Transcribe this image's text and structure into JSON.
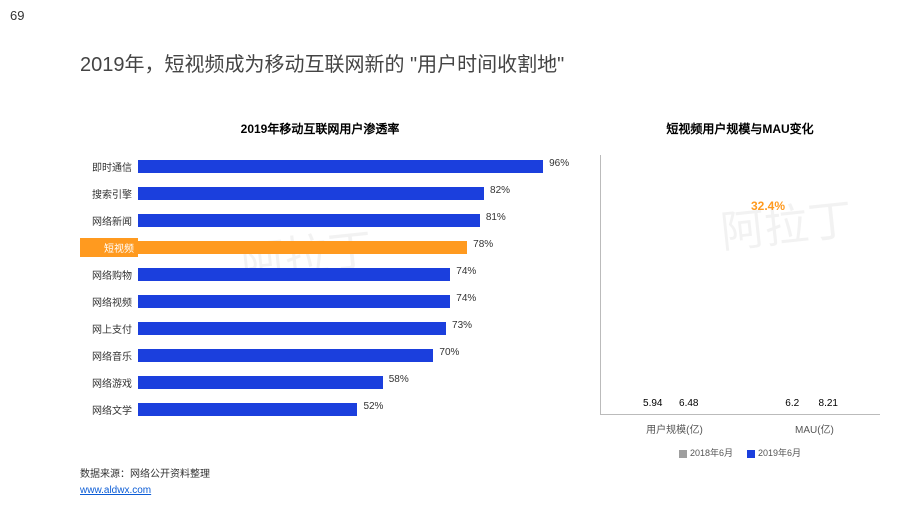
{
  "page_number": "69",
  "title": "2019年，短视频成为移动互联网新的 \"用户时间收割地\"",
  "watermark_text": "阿拉丁",
  "source_label": "数据来源：网络公开资料整理",
  "source_link_text": "www.aldwx.com",
  "source_link_color": "#0b5cd6",
  "left_chart": {
    "type": "bar-horizontal",
    "title": "2019年移动互联网用户渗透率",
    "max": 100,
    "default_color": "#1b3fdd",
    "highlight_color": "#ff9a1f",
    "label_fontsize": 10,
    "value_fontsize": 10,
    "items": [
      {
        "label": "即时通信",
        "value": 96,
        "highlight": false
      },
      {
        "label": "搜索引擎",
        "value": 82,
        "highlight": false
      },
      {
        "label": "网络新闻",
        "value": 81,
        "highlight": false
      },
      {
        "label": "短视频",
        "value": 78,
        "highlight": true
      },
      {
        "label": "网络购物",
        "value": 74,
        "highlight": false
      },
      {
        "label": "网络视频",
        "value": 74,
        "highlight": false
      },
      {
        "label": "网上支付",
        "value": 73,
        "highlight": false
      },
      {
        "label": "网络音乐",
        "value": 70,
        "highlight": false
      },
      {
        "label": "网络游戏",
        "value": 58,
        "highlight": false
      },
      {
        "label": "网络文学",
        "value": 52,
        "highlight": false
      }
    ]
  },
  "right_chart": {
    "type": "bar-grouped",
    "title": "短视频用户规模与MAU变化",
    "ylim": [
      0,
      9
    ],
    "series_colors": {
      "s2018": "#9e9e9e",
      "s2019": "#1b3fdd"
    },
    "legend": [
      {
        "swatch": "#9e9e9e",
        "label": "2018年6月"
      },
      {
        "swatch": "#1b3fdd",
        "label": "2019年6月"
      }
    ],
    "groups": [
      {
        "category": "用户规模(亿)",
        "bars": [
          {
            "series": "s2018",
            "value": 5.94
          },
          {
            "series": "s2019",
            "value": 6.48
          }
        ]
      },
      {
        "category": "MAU(亿)",
        "bars": [
          {
            "series": "s2018",
            "value": 6.2
          },
          {
            "series": "s2019",
            "value": 8.21
          }
        ]
      }
    ],
    "growth_label": {
      "text": "32.4%",
      "color": "#ff9a1f"
    }
  }
}
